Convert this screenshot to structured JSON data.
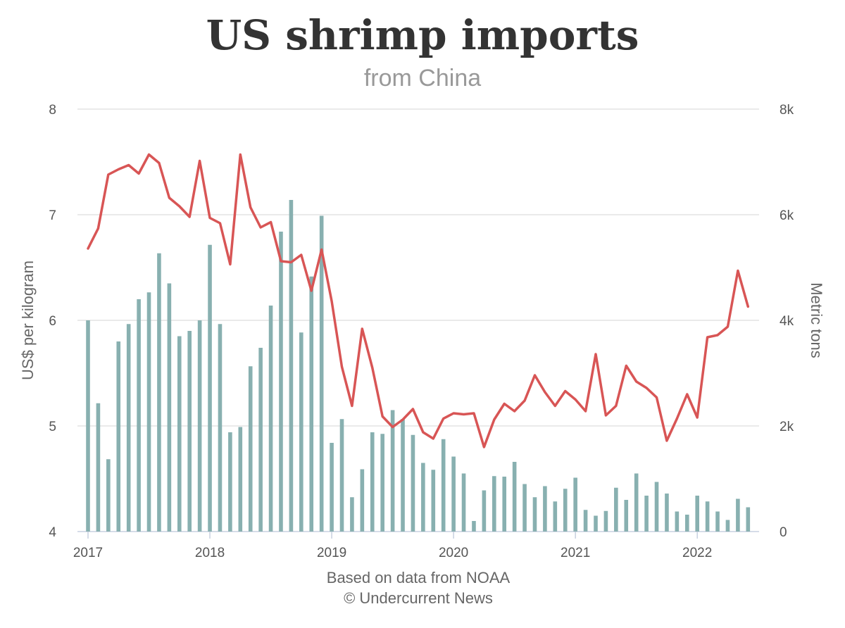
{
  "chart_data": {
    "type": "bar+line",
    "title": "US shrimp imports",
    "subtitle": "from China",
    "ylabel_left": "US$ per kilogram",
    "ylabel_right": "Metric tons",
    "ylim_left": [
      4,
      8
    ],
    "ylim_right": [
      0,
      8000
    ],
    "yticks_left": [
      "4",
      "5",
      "6",
      "7",
      "8"
    ],
    "yticks_right": [
      "0",
      "2k",
      "4k",
      "6k",
      "8k"
    ],
    "x_ticks": [
      "2017",
      "2018",
      "2019",
      "2020",
      "2021",
      "2022"
    ],
    "x_start_year": 2017,
    "months": 66,
    "grid": true,
    "credits": [
      "Based on data from NOAA",
      "© Undercurrent News"
    ],
    "series": [
      {
        "name": "Metric tons",
        "type": "bar",
        "axis": "right",
        "color": "#88b0b0",
        "values": [
          4000,
          2430,
          1370,
          3600,
          3930,
          4400,
          4530,
          5270,
          4700,
          3700,
          3800,
          4000,
          5430,
          3930,
          1880,
          1980,
          3130,
          3480,
          4280,
          5680,
          6280,
          3770,
          4830,
          5980,
          1680,
          2130,
          650,
          1180,
          1880,
          1850,
          2300,
          2130,
          1830,
          1300,
          1170,
          1750,
          1420,
          1100,
          200,
          780,
          1050,
          1040,
          1320,
          900,
          650,
          860,
          570,
          810,
          1020,
          410,
          300,
          390,
          830,
          600,
          1100,
          680,
          940,
          720,
          380,
          320,
          680,
          570,
          380,
          220,
          620,
          460
        ]
      },
      {
        "name": "US$ per kilogram",
        "type": "line",
        "axis": "left",
        "color": "#d85555",
        "values": [
          6.68,
          6.87,
          7.38,
          7.43,
          7.47,
          7.39,
          7.57,
          7.49,
          7.16,
          7.08,
          6.98,
          7.51,
          6.97,
          6.92,
          6.53,
          7.57,
          7.07,
          6.88,
          6.93,
          6.56,
          6.55,
          6.62,
          6.28,
          6.67,
          6.18,
          5.56,
          5.19,
          5.92,
          5.55,
          5.09,
          4.99,
          5.06,
          5.16,
          4.94,
          4.88,
          5.07,
          5.12,
          5.11,
          5.12,
          4.8,
          5.06,
          5.21,
          5.14,
          5.24,
          5.48,
          5.32,
          5.19,
          5.33,
          5.25,
          5.14,
          5.68,
          5.1,
          5.19,
          5.57,
          5.42,
          5.36,
          5.27,
          4.86,
          5.07,
          5.3,
          5.08,
          5.84,
          5.86,
          5.94,
          6.47,
          6.13
        ]
      }
    ]
  }
}
